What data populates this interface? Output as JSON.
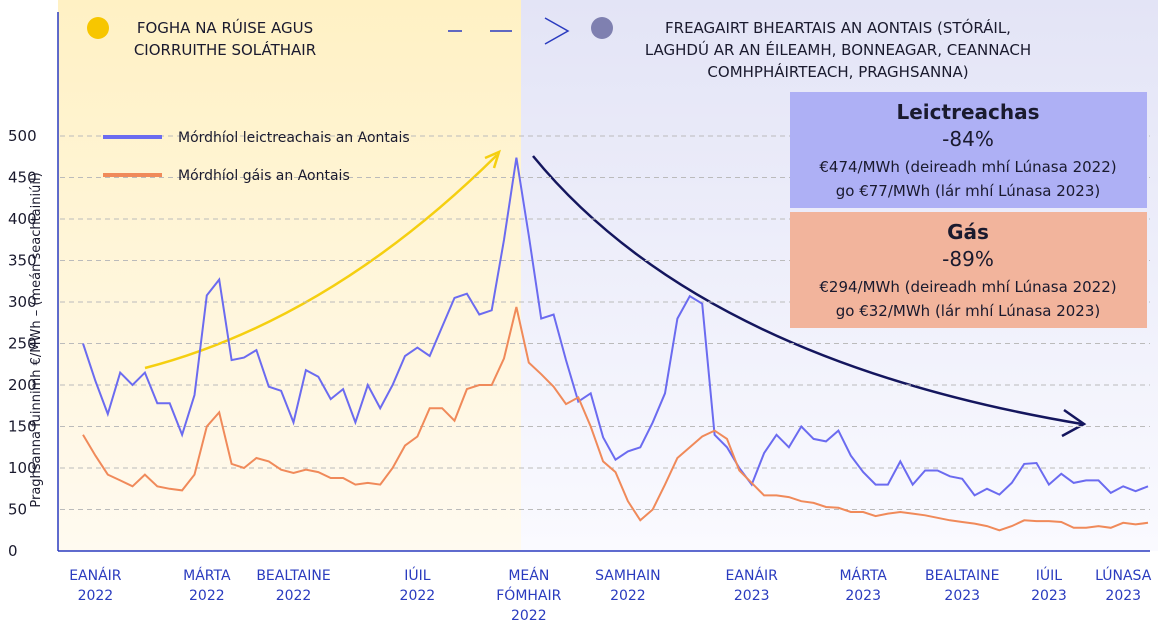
{
  "chart_data": {
    "type": "line",
    "y_label": "Praghsanna fuinnimh €/MWh – (meán seachtainiúil)",
    "phases": [
      [
        "FOGHA NA RÚISE AGUS",
        "CIORRUITHE SOLÁTHAIR"
      ],
      [
        "FREAGAIRT BHEARTAIS AN AONTAIS (STÓRÁIL,",
        "LAGHDÚ AR AN ÉILEAMH, BONNEAGAR, CEANNACH",
        "COMHPHÁIRTEACH, PRAGHSANNA)"
      ]
    ],
    "annotations": [
      {
        "title": "Leictreachas",
        "change": "-84%",
        "lines": [
          "€474/MWh (deireadh mhí Lúnasa 2022)",
          "go €77/MWh (lár mhí Lúnasa 2023)"
        ],
        "color": "#aeb0f5"
      },
      {
        "title": "Gás",
        "change": "-89%",
        "lines": [
          "€294/MWh (deireadh mhí Lúnasa 2022)",
          "go €32/MWh (lár mhí Lúnasa 2023)"
        ],
        "color": "#f2b49c"
      }
    ],
    "categories": [
      null,
      "EANÁIR\n2022",
      null,
      null,
      null,
      null,
      null,
      null,
      null,
      null,
      "MÁRTA\n2022",
      null,
      null,
      null,
      null,
      null,
      null,
      "BEALTAINE\n2022",
      null,
      null,
      null,
      null,
      null,
      null,
      null,
      null,
      null,
      "IÚIL\n2022",
      null,
      null,
      null,
      null,
      null,
      null,
      null,
      null,
      "MEÁN\nFÓMHAIR\n2022",
      null,
      null,
      null,
      null,
      null,
      null,
      null,
      "SAMHAIN\n2022",
      null,
      null,
      null,
      null,
      null,
      null,
      null,
      null,
      null,
      "EANÁIR\n2023",
      null,
      null,
      null,
      null,
      null,
      null,
      null,
      null,
      "MÁRTA\n2023",
      null,
      null,
      null,
      null,
      null,
      null,
      null,
      "BEALTAINE\n2023",
      null,
      null,
      null,
      null,
      null,
      null,
      "IÚIL\n2023",
      null,
      null,
      null,
      null,
      null,
      "LÚNASA\n2023",
      null,
      null
    ],
    "series": [
      {
        "name": "Mórdhíol leictreachais an Aontais",
        "color": "#6b6bf0",
        "values": [
          250,
          205,
          165,
          215,
          200,
          215,
          178,
          178,
          140,
          188,
          308,
          327,
          230,
          233,
          242,
          198,
          193,
          155,
          218,
          210,
          183,
          195,
          155,
          200,
          172,
          200,
          235,
          245,
          235,
          270,
          305,
          310,
          285,
          290,
          375,
          474,
          380,
          280,
          285,
          230,
          180,
          190,
          137,
          110,
          120,
          125,
          155,
          190,
          280,
          307,
          298,
          140,
          125,
          100,
          80,
          118,
          140,
          125,
          150,
          135,
          132,
          145,
          115,
          95,
          80,
          80,
          108,
          80,
          97,
          97,
          90,
          87,
          67,
          75,
          68,
          82,
          105,
          106,
          80,
          93,
          82,
          85,
          85,
          70,
          78,
          72,
          78
        ]
      },
      {
        "name": "Mórdhíol gáis an Aontais",
        "color": "#f08a5a",
        "values": [
          140,
          115,
          92,
          85,
          78,
          92,
          78,
          75,
          73,
          92,
          150,
          167,
          105,
          100,
          112,
          108,
          98,
          94,
          98,
          95,
          88,
          88,
          80,
          82,
          80,
          100,
          127,
          138,
          172,
          172,
          157,
          195,
          200,
          200,
          232,
          294,
          227,
          213,
          198,
          177,
          185,
          150,
          108,
          95,
          60,
          37,
          50,
          80,
          112,
          125,
          138,
          145,
          135,
          97,
          82,
          67,
          67,
          65,
          60,
          58,
          53,
          52,
          47,
          47,
          42,
          45,
          47,
          45,
          43,
          40,
          37,
          35,
          33,
          30,
          25,
          30,
          37,
          36,
          36,
          35,
          28,
          28,
          30,
          28,
          34,
          32,
          34
        ]
      }
    ],
    "ylim": [
      0,
      500
    ],
    "yticks": [
      0,
      50,
      100,
      150,
      200,
      250,
      300,
      350,
      400,
      450,
      500
    ],
    "grid": true
  }
}
